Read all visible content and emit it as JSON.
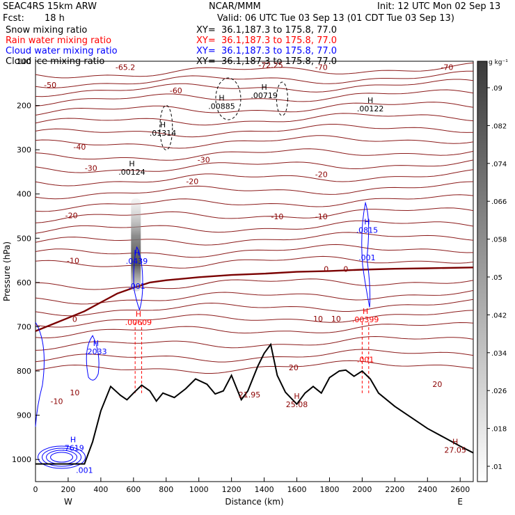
{
  "header": {
    "model": "SEAC4RS 15km ARW",
    "center": "NCAR/MMM",
    "init": "Init: 12 UTC Mon 02 Sep 13",
    "fcst_label": "Fcst:",
    "fcst_value": "18 h",
    "valid": "Valid: 06 UTC Tue 03 Sep 13 (01 CDT Tue 03 Sep 13)",
    "fields": [
      {
        "name": "Snow mixing ratio",
        "xy": "XY=  36.1,187.3 to 175.8, 77.0",
        "color": "#000000"
      },
      {
        "name": "Rain water mixing ratio",
        "xy": "XY=  36.1,187.3 to 175.8, 77.0",
        "color": "#ff0000"
      },
      {
        "name": "Cloud water mixing ratio",
        "xy": "XY=  36.1,187.3 to 175.8, 77.0",
        "color": "#0000ff"
      },
      {
        "name": "Cloud ice mixing ratio",
        "xy": "XY=  36.1,187.3 to 175.8, 77.0",
        "color": "#000000"
      }
    ]
  },
  "chart_data": {
    "type": "cross-section",
    "xlabel": "Distance (km)",
    "ylabel": "Pressure (hPa)",
    "xlim": [
      0,
      2680
    ],
    "ylim": [
      1050,
      100
    ],
    "x_ticks": [
      0,
      200,
      400,
      600,
      800,
      1000,
      1200,
      1400,
      1600,
      1800,
      2000,
      2200,
      2400,
      2600
    ],
    "y_ticks": [
      100,
      200,
      300,
      400,
      500,
      600,
      700,
      800,
      900,
      1000
    ],
    "x_end_labels": {
      "left": "W",
      "right": "E"
    },
    "colorbar": {
      "unit": "g kg⁻¹",
      "levels": [
        ".01",
        ".018",
        ".026",
        ".034",
        ".042",
        ".05",
        ".058",
        ".066",
        ".074",
        ".082",
        ".09"
      ]
    },
    "temperature_contour_labels": [
      {
        "text": "-65.2",
        "x": 550,
        "p": 120
      },
      {
        "text": "-72.25",
        "x": 1440,
        "p": 115
      },
      {
        "text": "-70",
        "x": 1750,
        "p": 120
      },
      {
        "text": "-70",
        "x": 2520,
        "p": 120
      },
      {
        "text": "-50",
        "x": 90,
        "p": 160
      },
      {
        "text": "-60",
        "x": 860,
        "p": 172
      },
      {
        "text": "-40",
        "x": 270,
        "p": 300
      },
      {
        "text": "-30",
        "x": 340,
        "p": 348
      },
      {
        "text": "-30",
        "x": 1030,
        "p": 329
      },
      {
        "text": "-20",
        "x": 960,
        "p": 378
      },
      {
        "text": "-20",
        "x": 1750,
        "p": 362
      },
      {
        "text": "-20",
        "x": 220,
        "p": 455
      },
      {
        "text": "-10",
        "x": 1480,
        "p": 457
      },
      {
        "text": "-10",
        "x": 1750,
        "p": 457
      },
      {
        "text": "-10",
        "x": 230,
        "p": 557
      },
      {
        "text": "0",
        "x": 1780,
        "p": 576
      },
      {
        "text": "0",
        "x": 1900,
        "p": 576
      },
      {
        "text": "0",
        "x": 240,
        "p": 689
      },
      {
        "text": "10",
        "x": 1730,
        "p": 688
      },
      {
        "text": "10",
        "x": 1840,
        "p": 688
      },
      {
        "text": "20",
        "x": 1580,
        "p": 798
      },
      {
        "text": "20",
        "x": 2460,
        "p": 836
      },
      {
        "text": "-10",
        "x": 130,
        "p": 875
      },
      {
        "text": "10",
        "x": 240,
        "p": 855
      }
    ],
    "extrema": [
      {
        "label": "H",
        "value": ".00124",
        "x": 590,
        "p": 356,
        "color": "#000000"
      },
      {
        "label": "H",
        "value": ".01314",
        "x": 780,
        "p": 268,
        "color": "#000000"
      },
      {
        "label": "H",
        "value": ".00885",
        "x": 1140,
        "p": 208,
        "color": "#000000"
      },
      {
        "label": "H",
        "value": ".00719",
        "x": 1400,
        "p": 183,
        "color": "#000000"
      },
      {
        "label": "H",
        "value": ".00122",
        "x": 2050,
        "p": 213,
        "color": "#000000"
      },
      {
        "label": "H",
        "value": ".0439",
        "x": 620,
        "p": 558,
        "color": "#0000ff"
      },
      {
        "label": "",
        "value": ".001",
        "x": 620,
        "p": 614,
        "color": "#0000ff"
      },
      {
        "label": "H",
        "value": ".0815",
        "x": 2030,
        "p": 488,
        "color": "#0000ff"
      },
      {
        "label": "",
        "value": ".001",
        "x": 2030,
        "p": 550,
        "color": "#0000ff"
      },
      {
        "label": "H",
        "value": ".2033",
        "x": 370,
        "p": 762,
        "color": "#0000ff"
      },
      {
        "label": "H",
        "value": ".7619",
        "x": 230,
        "p": 980,
        "color": "#0000ff"
      },
      {
        "label": "",
        "value": ".001",
        "x": 300,
        "p": 1030,
        "color": "#0000ff"
      },
      {
        "label": "H",
        "value": ".00609",
        "x": 630,
        "p": 696,
        "color": "#ff0000"
      },
      {
        "label": "H",
        "value": ".00399",
        "x": 2020,
        "p": 690,
        "color": "#ff0000"
      },
      {
        "label": "",
        "value": ".001",
        "x": 2020,
        "p": 780,
        "color": "#ff0000"
      },
      {
        "label": "",
        "value": "21.95",
        "x": 1310,
        "p": 860,
        "color": "#8b0000"
      },
      {
        "label": "H",
        "value": "25.08",
        "x": 1600,
        "p": 882,
        "color": "#8b0000"
      },
      {
        "label": "H",
        "value": "27.05",
        "x": 2570,
        "p": 985,
        "color": "#8b0000"
      }
    ],
    "freezing_level": {
      "x": [
        0,
        100,
        200,
        300,
        400,
        500,
        600,
        700,
        800,
        1000,
        1200,
        1400,
        1600,
        1800,
        2000,
        2200,
        2400,
        2680
      ],
      "p": [
        710,
        695,
        680,
        665,
        645,
        625,
        612,
        600,
        595,
        588,
        583,
        580,
        576,
        574,
        571,
        569,
        568,
        566
      ]
    },
    "terrain": {
      "x": [
        0,
        150,
        300,
        350,
        400,
        460,
        520,
        560,
        600,
        650,
        700,
        740,
        780,
        850,
        920,
        980,
        1050,
        1100,
        1150,
        1200,
        1260,
        1300,
        1360,
        1400,
        1440,
        1480,
        1530,
        1600,
        1650,
        1700,
        1750,
        1800,
        1860,
        1900,
        1950,
        2000,
        2050,
        2100,
        2200,
        2300,
        2400,
        2500,
        2600,
        2680
      ],
      "p": [
        1010,
        1010,
        1010,
        960,
        890,
        835,
        855,
        865,
        850,
        832,
        845,
        868,
        850,
        860,
        840,
        818,
        830,
        852,
        845,
        810,
        865,
        845,
        790,
        760,
        740,
        810,
        848,
        875,
        850,
        835,
        850,
        815,
        800,
        798,
        812,
        800,
        818,
        850,
        880,
        905,
        930,
        950,
        970,
        985
      ]
    }
  }
}
